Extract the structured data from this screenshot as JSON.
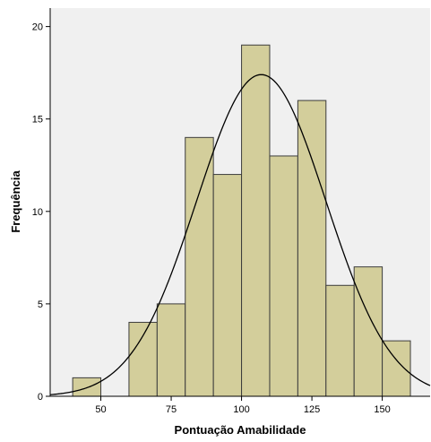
{
  "chart_data": {
    "type": "bar",
    "title": "",
    "xlabel": "Pontuação Amabilidade",
    "ylabel": "Frequência",
    "xlim": [
      32,
      167
    ],
    "ylim": [
      0,
      21
    ],
    "x_ticks": [
      50,
      75,
      100,
      125,
      150
    ],
    "y_ticks": [
      0,
      5,
      10,
      15,
      20
    ],
    "grid": false,
    "legend": "none",
    "bin_width": 10,
    "bins": [
      {
        "start": 40,
        "end": 50,
        "value": 1
      },
      {
        "start": 50,
        "end": 60,
        "value": 0
      },
      {
        "start": 60,
        "end": 70,
        "value": 4
      },
      {
        "start": 70,
        "end": 80,
        "value": 5
      },
      {
        "start": 80,
        "end": 90,
        "value": 14
      },
      {
        "start": 90,
        "end": 100,
        "value": 12
      },
      {
        "start": 100,
        "end": 110,
        "value": 19
      },
      {
        "start": 110,
        "end": 120,
        "value": 13
      },
      {
        "start": 120,
        "end": 130,
        "value": 16
      },
      {
        "start": 130,
        "end": 140,
        "value": 6
      },
      {
        "start": 140,
        "end": 150,
        "value": 7
      },
      {
        "start": 150,
        "end": 160,
        "value": 3
      }
    ],
    "normal_curve": {
      "mean": 107,
      "sd": 23,
      "peak": 17.4
    },
    "colors": {
      "bar_fill": "#d3ce9b",
      "bar_stroke": "#3c3c3c",
      "plot_background": "#f0f0f0",
      "curve": "#000000"
    }
  }
}
